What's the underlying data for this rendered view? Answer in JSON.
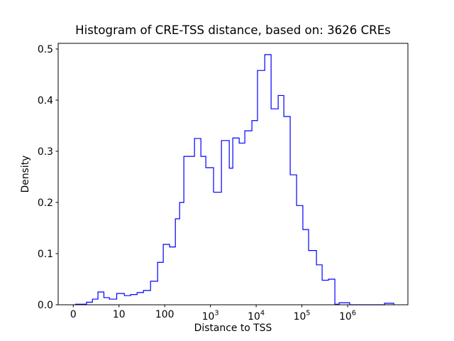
{
  "figure": {
    "background_color": "#ffffff"
  },
  "chart_data": {
    "type": "bar",
    "subtype": "step-histogram",
    "title": "Histogram of CRE-TSS distance, based on: 3626 CREs",
    "xlabel": "Distance to TSS",
    "ylabel": "Density",
    "sample_count": 3626,
    "line_color": "#0000ff",
    "spine_color": "#000000",
    "x_scale": "symlog",
    "linthresh": 10,
    "xlim": [
      -3.3,
      20800000
    ],
    "ylim": [
      0,
      0.511
    ],
    "grid": false,
    "legend": null,
    "x_ticks": [
      {
        "value": 0,
        "label": "0"
      },
      {
        "value": 10,
        "label": "10"
      },
      {
        "value": 100,
        "label": "100"
      },
      {
        "value": 1000,
        "label": "10^3"
      },
      {
        "value": 10000,
        "label": "10^4"
      },
      {
        "value": 100000,
        "label": "10^5"
      },
      {
        "value": 1000000,
        "label": "10^6"
      }
    ],
    "y_ticks": [
      {
        "value": 0.0,
        "label": "0.0"
      },
      {
        "value": 0.1,
        "label": "0.1"
      },
      {
        "value": 0.2,
        "label": "0.2"
      },
      {
        "value": 0.3,
        "label": "0.3"
      },
      {
        "value": 0.4,
        "label": "0.4"
      },
      {
        "value": 0.5,
        "label": "0.5"
      }
    ],
    "bin_edges": [
      0.5,
      2.9,
      4.2,
      5.4,
      6.7,
      7.9,
      9.5,
      13.1,
      18,
      24.9,
      34.3,
      49,
      70,
      93,
      128,
      171,
      212,
      262,
      448,
      618,
      793,
      1170,
      1740,
      2580,
      3080,
      4250,
      5650,
      8070,
      10700,
      15400,
      21200,
      30300,
      40300,
      55500,
      76500,
      105000,
      140000,
      208000,
      277000,
      382000,
      526000,
      652000,
      1110000,
      6400000,
      10200000
    ],
    "densities": [
      0.001,
      0.005,
      0.011,
      0.025,
      0.014,
      0.011,
      0.022,
      0.018,
      0.02,
      0.024,
      0.028,
      0.046,
      0.083,
      0.118,
      0.113,
      0.168,
      0.2,
      0.29,
      0.325,
      0.29,
      0.268,
      0.22,
      0.321,
      0.267,
      0.326,
      0.316,
      0.34,
      0.36,
      0.458,
      0.489,
      0.383,
      0.409,
      0.368,
      0.254,
      0.194,
      0.147,
      0.106,
      0.078,
      0.048,
      0.05,
      0.001,
      0.004,
      0.0,
      0.003
    ]
  }
}
